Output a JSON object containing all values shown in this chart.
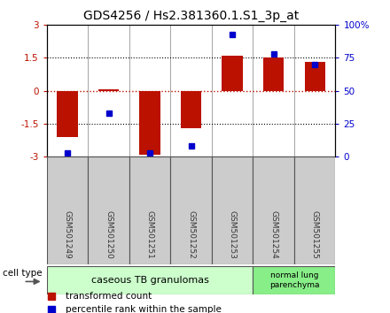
{
  "title": "GDS4256 / Hs2.381360.1.S1_3p_at",
  "samples": [
    "GSM501249",
    "GSM501250",
    "GSM501251",
    "GSM501252",
    "GSM501253",
    "GSM501254",
    "GSM501255"
  ],
  "transformed_count": [
    -2.1,
    0.05,
    -2.9,
    -1.7,
    1.6,
    1.5,
    1.3
  ],
  "percentile_rank": [
    3,
    33,
    3,
    8,
    93,
    78,
    70
  ],
  "bar_color": "#bb1100",
  "dot_color": "#0000cc",
  "ylim_left": [
    -3,
    3
  ],
  "ylim_right": [
    0,
    100
  ],
  "yticks_left": [
    -3,
    -1.5,
    0,
    1.5,
    3
  ],
  "ytick_labels_right": [
    "0",
    "25",
    "50",
    "75",
    "100%"
  ],
  "group1_label": "caseous TB granulomas",
  "group2_label": "normal lung\nparenchyma",
  "group1_indices": [
    0,
    1,
    2,
    3,
    4
  ],
  "group2_indices": [
    5,
    6
  ],
  "group1_color": "#ccffcc",
  "group2_color": "#88ee88",
  "sample_box_color": "#cccccc",
  "cell_type_label": "cell type",
  "legend_bar_label": "transformed count",
  "legend_dot_label": "percentile rank within the sample",
  "title_fontsize": 10,
  "tick_fontsize": 7.5,
  "bar_width": 0.5
}
